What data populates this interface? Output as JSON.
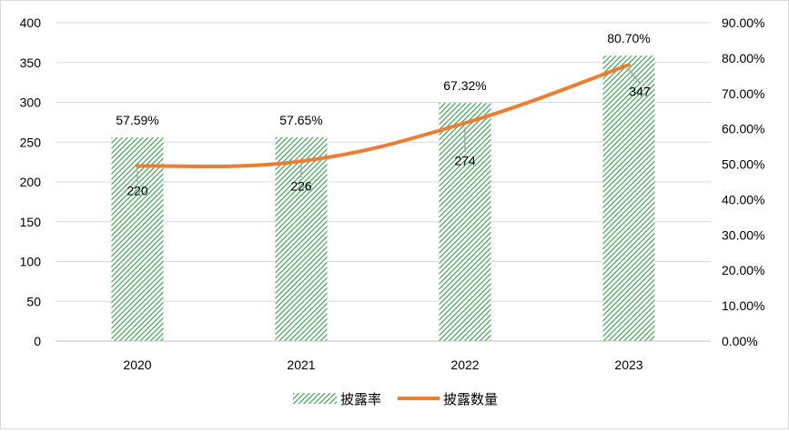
{
  "chart_data": {
    "type": "bar",
    "categories": [
      "2020",
      "2021",
      "2022",
      "2023"
    ],
    "series": [
      {
        "name": "披露率",
        "type": "bar",
        "axis": "right",
        "values": [
          57.59,
          57.65,
          67.32,
          80.7
        ],
        "labels": [
          "57.59%",
          "57.65%",
          "67.32%",
          "80.70%"
        ],
        "color": "#2e9e46"
      },
      {
        "name": "披露数量",
        "type": "line",
        "axis": "left",
        "values": [
          220,
          226,
          274,
          347
        ],
        "labels": [
          "220",
          "226",
          "274",
          "347"
        ],
        "color": "#ed7d31"
      }
    ],
    "y_left": {
      "range": [
        0,
        400
      ],
      "ticks": [
        "0",
        "50",
        "100",
        "150",
        "200",
        "250",
        "300",
        "350",
        "400"
      ]
    },
    "y_right": {
      "range": [
        0,
        90
      ],
      "ticks": [
        "0.00%",
        "10.00%",
        "20.00%",
        "30.00%",
        "40.00%",
        "50.00%",
        "60.00%",
        "70.00%",
        "80.00%",
        "90.00%"
      ]
    },
    "title": "",
    "xlabel": "",
    "ylabel": "",
    "grid": "horizontal",
    "legend": "bottom-center"
  }
}
